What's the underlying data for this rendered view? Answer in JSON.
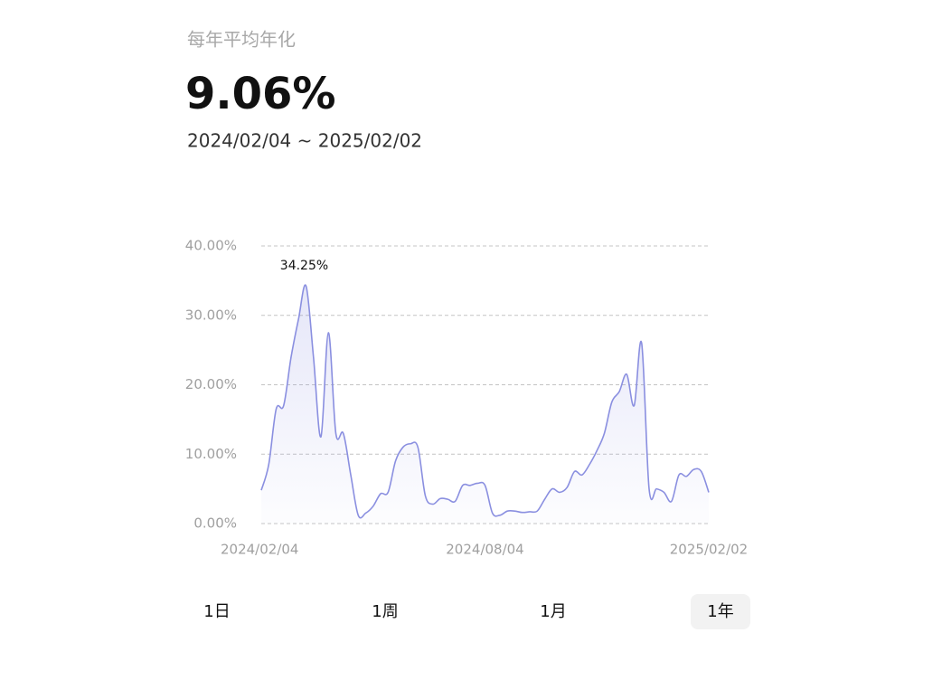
{
  "header": {
    "label": "每年平均年化",
    "value": "9.06%",
    "range": "2024/02/04 ~ 2025/02/02"
  },
  "chart_data": {
    "type": "area",
    "color": "#8a8fe0",
    "grid": true,
    "categories": [
      "2024/02/04",
      null,
      null,
      null,
      null,
      null,
      null,
      null,
      null,
      null,
      null,
      null,
      null,
      null,
      null,
      null,
      null,
      null,
      null,
      null,
      null,
      null,
      null,
      null,
      null,
      null,
      null,
      null,
      null,
      null,
      "2024/08/04",
      null,
      null,
      null,
      null,
      null,
      null,
      null,
      null,
      null,
      null,
      null,
      null,
      null,
      null,
      null,
      null,
      null,
      null,
      null,
      null,
      null,
      null,
      null,
      null,
      null,
      null,
      null,
      null,
      null,
      "2025/02/02"
    ],
    "values": [
      4.8,
      8.5,
      16.5,
      17,
      24,
      29.5,
      34.25,
      24,
      12.5,
      27.5,
      13,
      13,
      7,
      1.2,
      1.5,
      2.5,
      4.3,
      4.5,
      9,
      11,
      11.5,
      11,
      4,
      2.8,
      3.6,
      3.5,
      3.2,
      5.5,
      5.5,
      5.8,
      5.5,
      1.5,
      1.2,
      1.8,
      1.8,
      1.6,
      1.7,
      1.8,
      3.5,
      5,
      4.5,
      5.2,
      7.5,
      7,
      8.5,
      10.5,
      13,
      17.5,
      19,
      21.5,
      17,
      26,
      5,
      5,
      4.5,
      3.2,
      7,
      6.8,
      7.8,
      7.5,
      4.5
    ],
    "value_labels": [
      null,
      null,
      null,
      null,
      null,
      null,
      "34.25%",
      null,
      null,
      null,
      null,
      null,
      null,
      null,
      null,
      null,
      null,
      null,
      null,
      null,
      null,
      null,
      null,
      null,
      null,
      null,
      null,
      null,
      null,
      null,
      null,
      null,
      null,
      null,
      null,
      null,
      null,
      null,
      null,
      null,
      null,
      null,
      null,
      null,
      null,
      null,
      null,
      null,
      null,
      null,
      null,
      null,
      null,
      null,
      null,
      null,
      null,
      null,
      null,
      null,
      null
    ],
    "ylim": [
      0,
      40
    ],
    "yticks": [
      {
        "value": 0,
        "label": "0.00%"
      },
      {
        "value": 10,
        "label": "10.00%"
      },
      {
        "value": 20,
        "label": "20.00%"
      },
      {
        "value": 30,
        "label": "30.00%"
      },
      {
        "value": 40,
        "label": "40.00%"
      }
    ]
  },
  "tabs": {
    "items": [
      "1日",
      "1周",
      "1月",
      "1年"
    ],
    "selected_index": 3
  }
}
